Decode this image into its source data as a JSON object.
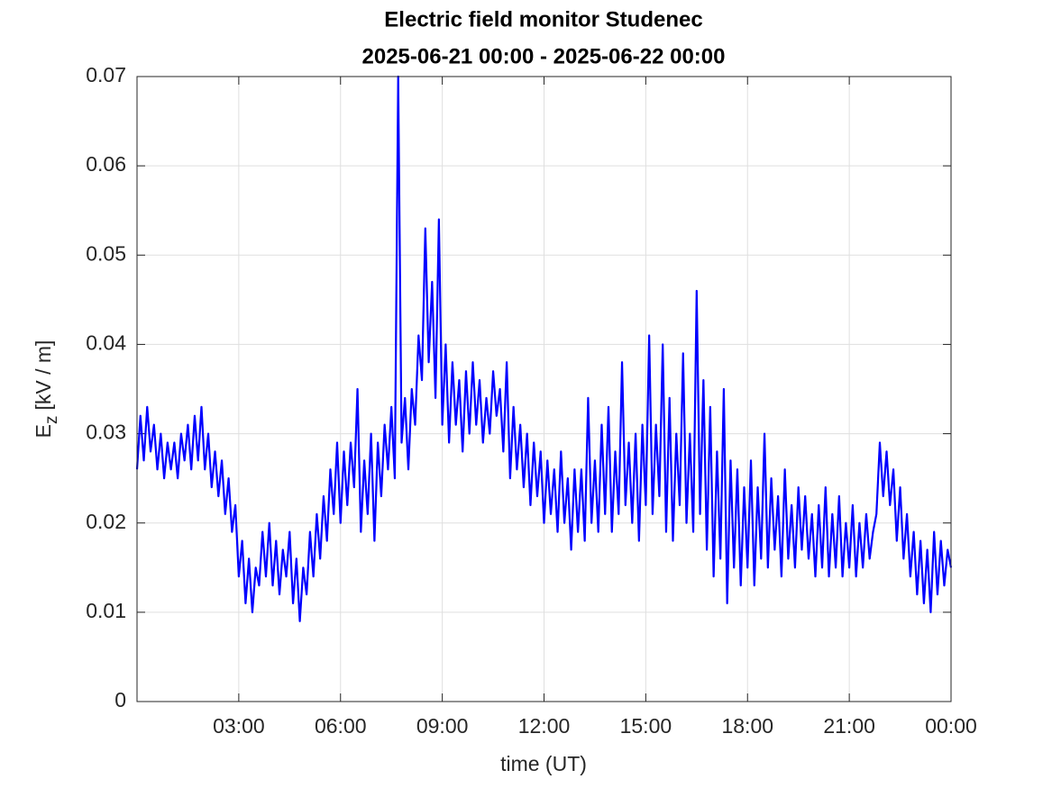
{
  "chart_data": {
    "type": "line",
    "title": "Electric field monitor Studenec",
    "subtitle": "2025-06-21 00:00 - 2025-06-22 00:00",
    "xlabel": "time (UT)",
    "ylabel": {
      "main": "E",
      "sub": "z",
      "unit": "[kV / m]"
    },
    "xlim": [
      0,
      24
    ],
    "xticks": [
      {
        "value": 3,
        "label": "03:00"
      },
      {
        "value": 6,
        "label": "06:00"
      },
      {
        "value": 9,
        "label": "09:00"
      },
      {
        "value": 12,
        "label": "12:00"
      },
      {
        "value": 15,
        "label": "15:00"
      },
      {
        "value": 18,
        "label": "18:00"
      },
      {
        "value": 21,
        "label": "21:00"
      },
      {
        "value": 24,
        "label": "00:00"
      }
    ],
    "ylim": [
      0,
      0.07
    ],
    "yticks": [
      0,
      0.01,
      0.02,
      0.03,
      0.04,
      0.05,
      0.06,
      0.07
    ],
    "grid": true,
    "x": [
      0,
      0.1,
      0.2,
      0.3,
      0.4,
      0.5,
      0.6,
      0.7,
      0.8,
      0.9,
      1,
      1.1,
      1.2,
      1.3,
      1.4,
      1.5,
      1.6,
      1.7,
      1.8,
      1.9,
      2,
      2.1,
      2.2,
      2.3,
      2.4,
      2.5,
      2.6,
      2.7,
      2.8,
      2.9,
      3,
      3.1,
      3.2,
      3.3,
      3.4,
      3.5,
      3.6,
      3.7,
      3.8,
      3.9,
      4,
      4.1,
      4.2,
      4.3,
      4.4,
      4.5,
      4.6,
      4.7,
      4.8,
      4.9,
      5,
      5.1,
      5.2,
      5.3,
      5.4,
      5.5,
      5.6,
      5.7,
      5.8,
      5.9,
      6,
      6.1,
      6.2,
      6.3,
      6.4,
      6.5,
      6.6,
      6.7,
      6.8,
      6.9,
      7,
      7.1,
      7.2,
      7.3,
      7.4,
      7.5,
      7.6,
      7.7,
      7.8,
      7.9,
      8,
      8.1,
      8.2,
      8.3,
      8.4,
      8.5,
      8.6,
      8.7,
      8.8,
      8.9,
      9,
      9.1,
      9.2,
      9.3,
      9.4,
      9.5,
      9.6,
      9.7,
      9.8,
      9.9,
      10,
      10.1,
      10.2,
      10.3,
      10.4,
      10.5,
      10.6,
      10.7,
      10.8,
      10.9,
      11,
      11.1,
      11.2,
      11.3,
      11.4,
      11.5,
      11.6,
      11.7,
      11.8,
      11.9,
      12,
      12.1,
      12.2,
      12.3,
      12.4,
      12.5,
      12.6,
      12.7,
      12.8,
      12.9,
      13,
      13.1,
      13.2,
      13.3,
      13.4,
      13.5,
      13.6,
      13.7,
      13.8,
      13.9,
      14,
      14.1,
      14.2,
      14.3,
      14.4,
      14.5,
      14.6,
      14.7,
      14.8,
      14.9,
      15,
      15.1,
      15.2,
      15.3,
      15.4,
      15.5,
      15.6,
      15.7,
      15.8,
      15.9,
      16,
      16.1,
      16.2,
      16.3,
      16.4,
      16.5,
      16.6,
      16.7,
      16.8,
      16.9,
      17,
      17.1,
      17.2,
      17.3,
      17.4,
      17.5,
      17.6,
      17.7,
      17.8,
      17.9,
      18,
      18.1,
      18.2,
      18.3,
      18.4,
      18.5,
      18.6,
      18.7,
      18.8,
      18.9,
      19,
      19.1,
      19.2,
      19.3,
      19.4,
      19.5,
      19.6,
      19.7,
      19.8,
      19.9,
      20,
      20.1,
      20.2,
      20.3,
      20.4,
      20.5,
      20.6,
      20.7,
      20.8,
      20.9,
      21,
      21.1,
      21.2,
      21.3,
      21.4,
      21.5,
      21.6,
      21.7,
      21.8,
      21.9,
      22,
      22.1,
      22.2,
      22.3,
      22.4,
      22.5,
      22.6,
      22.7,
      22.8,
      22.9,
      23,
      23.1,
      23.2,
      23.3,
      23.4,
      23.5,
      23.6,
      23.7,
      23.8,
      23.9,
      24
    ],
    "series": [
      {
        "color": "#0000ff",
        "values": [
          0.026,
          0.032,
          0.027,
          0.033,
          0.028,
          0.031,
          0.026,
          0.03,
          0.025,
          0.029,
          0.026,
          0.029,
          0.025,
          0.03,
          0.027,
          0.031,
          0.026,
          0.032,
          0.027,
          0.033,
          0.026,
          0.03,
          0.024,
          0.028,
          0.023,
          0.027,
          0.021,
          0.025,
          0.019,
          0.022,
          0.014,
          0.018,
          0.011,
          0.016,
          0.01,
          0.015,
          0.013,
          0.019,
          0.014,
          0.02,
          0.013,
          0.018,
          0.012,
          0.017,
          0.014,
          0.019,
          0.011,
          0.016,
          0.009,
          0.015,
          0.012,
          0.019,
          0.014,
          0.021,
          0.016,
          0.023,
          0.018,
          0.026,
          0.021,
          0.029,
          0.02,
          0.028,
          0.022,
          0.029,
          0.024,
          0.035,
          0.019,
          0.027,
          0.021,
          0.03,
          0.018,
          0.029,
          0.023,
          0.031,
          0.026,
          0.033,
          0.025,
          0.07,
          0.029,
          0.034,
          0.026,
          0.035,
          0.031,
          0.041,
          0.036,
          0.053,
          0.038,
          0.047,
          0.034,
          0.054,
          0.031,
          0.04,
          0.029,
          0.038,
          0.031,
          0.036,
          0.028,
          0.037,
          0.03,
          0.038,
          0.031,
          0.036,
          0.029,
          0.034,
          0.03,
          0.037,
          0.032,
          0.035,
          0.028,
          0.038,
          0.025,
          0.033,
          0.026,
          0.031,
          0.024,
          0.03,
          0.022,
          0.029,
          0.023,
          0.028,
          0.02,
          0.027,
          0.021,
          0.026,
          0.019,
          0.028,
          0.02,
          0.025,
          0.017,
          0.026,
          0.019,
          0.026,
          0.018,
          0.034,
          0.02,
          0.027,
          0.019,
          0.031,
          0.021,
          0.033,
          0.019,
          0.028,
          0.021,
          0.038,
          0.022,
          0.029,
          0.02,
          0.03,
          0.018,
          0.031,
          0.022,
          0.041,
          0.021,
          0.031,
          0.023,
          0.04,
          0.019,
          0.034,
          0.018,
          0.03,
          0.022,
          0.039,
          0.02,
          0.03,
          0.019,
          0.046,
          0.021,
          0.036,
          0.017,
          0.033,
          0.014,
          0.028,
          0.016,
          0.035,
          0.011,
          0.027,
          0.015,
          0.026,
          0.013,
          0.024,
          0.015,
          0.027,
          0.013,
          0.024,
          0.016,
          0.03,
          0.015,
          0.025,
          0.017,
          0.023,
          0.014,
          0.026,
          0.016,
          0.022,
          0.015,
          0.024,
          0.017,
          0.023,
          0.016,
          0.021,
          0.014,
          0.022,
          0.015,
          0.024,
          0.014,
          0.021,
          0.015,
          0.023,
          0.014,
          0.02,
          0.015,
          0.022,
          0.014,
          0.02,
          0.015,
          0.021,
          0.016,
          0.019,
          0.021,
          0.029,
          0.023,
          0.028,
          0.022,
          0.026,
          0.018,
          0.024,
          0.016,
          0.021,
          0.014,
          0.019,
          0.012,
          0.018,
          0.011,
          0.017,
          0.01,
          0.019,
          0.012,
          0.018,
          0.013,
          0.017,
          0.015
        ]
      }
    ]
  }
}
